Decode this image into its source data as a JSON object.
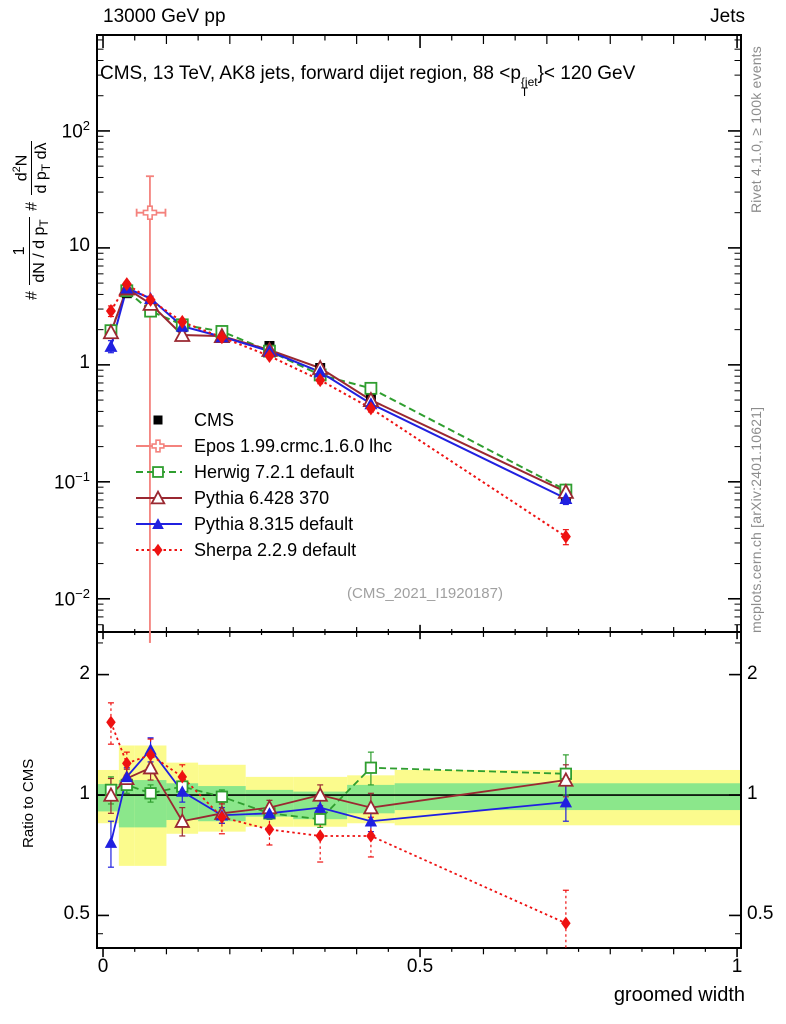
{
  "header": {
    "left": "13000 GeV pp",
    "right": "Jets"
  },
  "panel_title": {
    "prefix": "CMS, 13 TeV, AK8 jets, forward dijet region, 88 <p",
    "sup": "{jet",
    "sub": "T",
    "suffix": "}< 120 GeV"
  },
  "y_axis_label": {
    "hash1": "#",
    "frac1_num": "1",
    "frac1_den_a": "dN / d p",
    "frac1_den_sub": "T",
    "hash2": "#",
    "frac2_num_a": "d",
    "frac2_num_sup": "2",
    "frac2_num_b": "N",
    "frac2_den_a": "d p",
    "frac2_den_sub": "T",
    "frac2_den_b": " dλ"
  },
  "ratio_ylabel": "Ratio to CMS",
  "x_axis_label": "groomed width",
  "watermark": "(CMS_2021_I1920187)",
  "side_notes": {
    "top_right": "Rivet 4.1.0, ≥ 100k events",
    "bottom_right": "mcplots.cern.ch [arXiv:2401.10621]"
  },
  "legend": [
    {
      "label": "CMS",
      "color": "#000000",
      "line": "none",
      "marker": "square-filled"
    },
    {
      "label": "Epos 1.99.crmc.1.6.0 lhc",
      "color": "#f4827d",
      "line": "solid",
      "marker": "plus-open"
    },
    {
      "label": "Herwig 7.2.1 default",
      "color": "#2f9e2f",
      "line": "dashed",
      "marker": "square-open"
    },
    {
      "label": "Pythia 6.428 370",
      "color": "#9a2831",
      "line": "solid",
      "marker": "triangle-open"
    },
    {
      "label": "Pythia 8.315 default",
      "color": "#2020e0",
      "line": "solid",
      "marker": "triangle-filled"
    },
    {
      "label": "Sherpa 2.2.9 default",
      "color": "#ee1111",
      "line": "dotted",
      "marker": "diamond-filled"
    }
  ],
  "axes": {
    "main_y": [
      {
        "base": "10",
        "exp": "2",
        "v": 100
      },
      {
        "base": "10",
        "exp": "",
        "v": 10
      },
      {
        "base": "1",
        "exp": "",
        "v": 1
      },
      {
        "base": "10",
        "exp": "−1",
        "v": 0.1
      },
      {
        "base": "10",
        "exp": "−2",
        "v": 0.01
      }
    ],
    "ratio_y": [
      {
        "t": "2",
        "v": 2
      },
      {
        "t": "1",
        "v": 1
      },
      {
        "t": "0.5",
        "v": 0.5
      }
    ],
    "x": [
      {
        "t": "0",
        "v": 0
      },
      {
        "t": "0.5",
        "v": 0.5
      },
      {
        "t": "1",
        "v": 1
      }
    ]
  },
  "chart_data": {
    "type": "line",
    "title": "CMS, 13 TeV, AK8 jets, forward dijet region, 88 <pT{jet}< 120 GeV",
    "xlabel": "groomed width",
    "ylabel": "# 1/(dN/dpT) # d2N/(dpT dlambda)",
    "legend_position": "middle-left",
    "grid": false,
    "main": {
      "yscale": "log",
      "ylim": [
        0.0052,
        661
      ],
      "xlim": [
        -0.0095,
        1.0062
      ],
      "x": [
        0.0125,
        0.0375,
        0.075,
        0.125,
        0.1875,
        0.2625,
        0.3425,
        0.4225,
        0.73
      ],
      "series": [
        {
          "name": "CMS",
          "color": "#000000",
          "line": "none",
          "marker": "square-filled",
          "y": [
            1.9,
            4.1,
            2.85,
            2.1,
            1.95,
            1.45,
            0.94,
            0.54,
            0.075
          ],
          "yerr": [
            0.12,
            0.25,
            0.18,
            0.12,
            0.1,
            0.07,
            0.05,
            0.035,
            0.007
          ]
        },
        {
          "name": "Herwig 7.2.1 default",
          "color": "#2f9e2f",
          "line": "dashed",
          "marker": "square-open",
          "y": [
            1.96,
            4.3,
            2.88,
            2.2,
            1.93,
            1.31,
            0.82,
            0.63,
            0.085
          ],
          "yerr": [
            0.12,
            0.22,
            0.15,
            0.11,
            0.08,
            0.05,
            0.04,
            0.05,
            0.01
          ]
        },
        {
          "name": "Pythia 6.428 370",
          "color": "#9a2831",
          "line": "solid",
          "marker": "triangle-open",
          "y": [
            1.9,
            4.5,
            3.32,
            1.8,
            1.76,
            1.34,
            0.94,
            0.5,
            0.082
          ],
          "yerr": [
            0.15,
            0.22,
            0.16,
            0.12,
            0.08,
            0.05,
            0.05,
            0.04,
            0.009
          ]
        },
        {
          "name": "Pythia 8.315 default",
          "color": "#2020e0",
          "line": "solid",
          "marker": "triangle-filled",
          "y": [
            1.44,
            4.54,
            3.69,
            2.14,
            1.74,
            1.31,
            0.87,
            0.465,
            0.072
          ],
          "yerr": [
            0.17,
            0.22,
            0.18,
            0.1,
            0.07,
            0.05,
            0.04,
            0.03,
            0.008
          ]
        },
        {
          "name": "Sherpa 2.2.9 default",
          "color": "#ee1111",
          "line": "dotted",
          "marker": "diamond-filled",
          "y": [
            2.89,
            4.9,
            3.59,
            2.33,
            1.72,
            1.19,
            0.74,
            0.425,
            0.034
          ],
          "yerr": [
            0.3,
            0.25,
            0.2,
            0.14,
            0.1,
            0.06,
            0.05,
            0.03,
            0.005
          ]
        }
      ],
      "epos": {
        "name": "Epos 1.99.crmc.1.6.0 lhc",
        "color": "#f4827d",
        "marker": "plus-open",
        "x": 0.074,
        "y": 20,
        "xerr": [
          0.053,
          0.0985
        ],
        "yerr_lo": 0.005,
        "yerr_hi": 41
      }
    },
    "ratio": {
      "yscale": "log",
      "ylim": [
        0.4145,
        2.556
      ],
      "ref": 1,
      "bin_edges": [
        0,
        0.025,
        0.05,
        0.1,
        0.15,
        0.225,
        0.3,
        0.385,
        0.46,
        1.0
      ],
      "bands": {
        "yellow_color": "#fbfb8d",
        "green_color": "#8be78b",
        "yellow": [
          [
            0.85,
            1.155
          ],
          [
            0.665,
            1.33
          ],
          [
            0.665,
            1.33
          ],
          [
            0.8,
            1.205
          ],
          [
            0.81,
            1.19
          ],
          [
            0.833,
            1.11
          ],
          [
            0.833,
            1.11
          ],
          [
            0.85,
            1.12
          ],
          [
            0.84,
            1.155
          ]
        ],
        "green": [
          [
            0.91,
            1.065
          ],
          [
            0.83,
            1.09
          ],
          [
            0.83,
            1.09
          ],
          [
            0.866,
            1.07
          ],
          [
            0.86,
            1.053
          ],
          [
            0.883,
            1.03
          ],
          [
            0.87,
            1.02
          ],
          [
            0.9,
            1.06
          ],
          [
            0.917,
            1.07
          ]
        ]
      },
      "series": [
        {
          "name": "Herwig 7.2.1 default",
          "color": "#2f9e2f",
          "line": "dashed",
          "marker": "square-open",
          "r": [
            1.03,
            1.06,
            1.01,
            1.05,
            0.99,
            0.9,
            0.87,
            1.17,
            1.13
          ],
          "rerr": [
            0.08,
            0.05,
            0.05,
            0.05,
            0.04,
            0.03,
            0.04,
            0.11,
            0.13
          ]
        },
        {
          "name": "Pythia 6.428 370",
          "color": "#9a2831",
          "line": "solid",
          "marker": "triangle-open",
          "r": [
            1.0,
            1.1,
            1.17,
            0.86,
            0.9,
            0.93,
            1.0,
            0.93,
            1.09
          ],
          "rerr": [
            0.1,
            0.06,
            0.08,
            0.07,
            0.05,
            0.04,
            0.06,
            0.08,
            0.1
          ]
        },
        {
          "name": "Pythia 8.315 default",
          "color": "#2020e0",
          "line": "solid",
          "marker": "triangle-filled",
          "r": [
            0.76,
            1.11,
            1.3,
            1.02,
            0.89,
            0.9,
            0.93,
            0.86,
            0.96
          ],
          "rerr": [
            0.1,
            0.06,
            0.09,
            0.06,
            0.04,
            0.03,
            0.04,
            0.05,
            0.1
          ]
        },
        {
          "name": "Sherpa 2.2.9 default",
          "color": "#ee1111",
          "line": "dotted",
          "marker": "diamond-filled",
          "r": [
            1.52,
            1.2,
            1.26,
            1.11,
            0.88,
            0.82,
            0.79,
            0.79,
            0.478
          ],
          "rerr": [
            0.18,
            0.08,
            0.12,
            0.08,
            0.08,
            0.07,
            0.11,
            0.09,
            0.1
          ]
        }
      ],
      "epos_stub": {
        "x": 0.074,
        "color": "#f4827d",
        "r_top": 2.556,
        "r_bottom": 2.4
      }
    }
  }
}
